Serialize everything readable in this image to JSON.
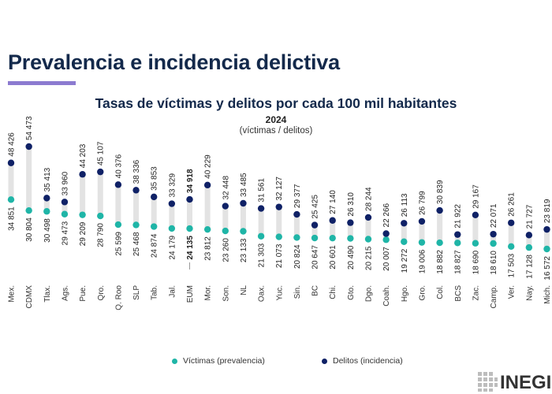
{
  "page": {
    "title": "Prevalencia e incidencia delictiva",
    "logo_text": "INEGI"
  },
  "chart_data": {
    "type": "scatter",
    "title": "Tasas de víctimas y delitos por cada 100 mil habitantes",
    "subtitle": "2024",
    "units": "(víctimas / delitos)",
    "categories": [
      "Mex.",
      "CDMX",
      "Tlax.",
      "Ags.",
      "Pue.",
      "Qro.",
      "Q. Roo",
      "SLP",
      "Tab.",
      "Jal.",
      "EUM",
      "Mor.",
      "Son.",
      "NL",
      "Oax.",
      "Yuc.",
      "Sin.",
      "BC",
      "Chi.",
      "Gto.",
      "Dgo.",
      "Coah.",
      "Hgo.",
      "Gro.",
      "Col.",
      "BCS",
      "Zac.",
      "Camp.",
      "Ver.",
      "Nay.",
      "Mich."
    ],
    "highlight_category": "EUM",
    "series": [
      {
        "name": "Víctimas (prevalencia)",
        "color": "#1fb5a7",
        "values": [
          34851,
          30804,
          30498,
          29473,
          29209,
          28790,
          25599,
          25468,
          24874,
          24179,
          24135,
          23812,
          23260,
          23133,
          21303,
          21073,
          20824,
          20647,
          20601,
          20490,
          20215,
          20007,
          19272,
          19006,
          18882,
          18827,
          18690,
          18610,
          17503,
          17128,
          16572
        ],
        "labels": [
          "34 851",
          "30 804",
          "30 498",
          "29 473",
          "29 209",
          "28 790",
          "25 599",
          "25 468",
          "24 874",
          "24 179",
          "24 135",
          "23 812",
          "23 260",
          "23 133",
          "21 303",
          "21 073",
          "20 824",
          "20 647",
          "20 601",
          "20 490",
          "20 215",
          "20 007",
          "19 272",
          "19 006",
          "18 882",
          "18 827",
          "18 690",
          "18 610",
          "17 503",
          "17 128",
          "16 572"
        ]
      },
      {
        "name": "Delitos (incidencia)",
        "color": "#0f2166",
        "values": [
          48426,
          54473,
          35413,
          33960,
          44203,
          45107,
          40376,
          38336,
          35853,
          33329,
          34918,
          40229,
          32448,
          33485,
          31561,
          32127,
          29377,
          25425,
          27140,
          26310,
          28244,
          22266,
          26113,
          26799,
          30839,
          21922,
          29167,
          22071,
          26261,
          21727,
          23819
        ],
        "labels": [
          "48 426",
          "54 473",
          "35 413",
          "33 960",
          "44 203",
          "45 107",
          "40 376",
          "38 336",
          "35 853",
          "33 329",
          "34 918",
          "40 229",
          "32 448",
          "33 485",
          "31 561",
          "32 127",
          "29 377",
          "25 425",
          "27 140",
          "26 310",
          "28 244",
          "22 266",
          "26 113",
          "26 799",
          "30 839",
          "21 922",
          "29 167",
          "22 071",
          "26 261",
          "21 727",
          "23 819"
        ]
      }
    ]
  },
  "colors": {
    "title": "#13294b",
    "accent_bar": "#8c7bd0",
    "connector": "#e3e3e3"
  }
}
